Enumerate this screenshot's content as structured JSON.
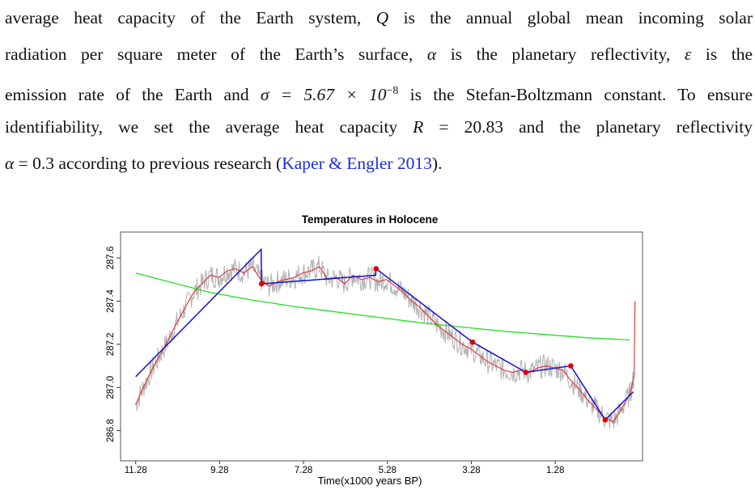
{
  "text": {
    "l1_a": "average heat capacity of the Earth system, ",
    "l1_Q": "Q",
    "l1_b": " is the annual global mean incoming solar",
    "l2_a": "radiation per square meter of the Earth’s surface, ",
    "l2_alpha": "α",
    "l2_b": " is the planetary reflectivity, ",
    "l2_eps": "ε",
    "l2_c": " is the",
    "l3_a": "emission rate of the Earth and ",
    "l3_sigma": "σ = 5.67 × 10",
    "l3_exp": "−8",
    "l3_b": " is the Stefan-Boltzmann constant. To ensure",
    "l4_a": "identifiability, we set the average heat capacity ",
    "l4_R": "R",
    "l4_b": " = 20.83 and the planetary reflectivity",
    "l5_alpha": "α",
    "l5_a": " = 0.3 according to previous research (",
    "l5_cite": "Kaper & Engler 2013",
    "l5_b": ")."
  },
  "chart_data": {
    "type": "line",
    "title": "Temperatures in Holocene",
    "xlabel": "Time(x1000 years BP)",
    "ylabel": "",
    "x_ticks": [
      "11.28",
      "9.28",
      "7.28",
      "5.28",
      "3.28",
      "1.28"
    ],
    "x_tick_values": [
      11.28,
      9.28,
      7.28,
      5.28,
      3.28,
      1.28
    ],
    "y_ticks": [
      "286.8",
      "287.0",
      "287.2",
      "287.4",
      "287.6"
    ],
    "y_tick_values": [
      286.8,
      287.0,
      287.2,
      287.4,
      287.6
    ],
    "xlim": [
      11.64,
      -0.8
    ],
    "ylim": [
      286.66,
      287.72
    ],
    "colors": {
      "raw": "#b0b0b0",
      "smooth": "#e03030",
      "piecewise": "#1010d0",
      "trend": "#20e020",
      "points": "#e00000"
    },
    "series": [
      {
        "key": "piecewise",
        "x": [
          11.28,
          8.29,
          8.28,
          5.56,
          5.55,
          3.25,
          1.98,
          0.91,
          0.09,
          -0.58
        ],
        "y": [
          287.05,
          287.64,
          287.48,
          287.52,
          287.55,
          287.21,
          287.07,
          287.1,
          286.85,
          286.98
        ]
      },
      {
        "key": "trend",
        "x": [
          11.28,
          10.5,
          9.5,
          8.5,
          7.5,
          6.5,
          5.5,
          4.5,
          3.5,
          2.5,
          1.5,
          0.5,
          -0.5
        ],
        "y": [
          287.53,
          287.49,
          287.44,
          287.405,
          287.375,
          287.35,
          287.325,
          287.3,
          287.28,
          287.26,
          287.245,
          287.23,
          287.22
        ]
      },
      {
        "key": "smooth",
        "x": [
          11.28,
          11.1,
          10.9,
          10.7,
          10.5,
          10.3,
          10.1,
          9.9,
          9.7,
          9.5,
          9.3,
          9.1,
          8.9,
          8.7,
          8.5,
          8.3,
          8.1,
          7.9,
          7.7,
          7.5,
          7.3,
          7.1,
          6.9,
          6.7,
          6.5,
          6.3,
          6.1,
          5.9,
          5.7,
          5.5,
          5.3,
          5.1,
          4.9,
          4.7,
          4.5,
          4.3,
          4.1,
          3.9,
          3.7,
          3.5,
          3.3,
          3.1,
          2.9,
          2.7,
          2.5,
          2.3,
          2.1,
          1.9,
          1.7,
          1.5,
          1.3,
          1.1,
          0.9,
          0.7,
          0.5,
          0.3,
          0.1,
          -0.1,
          -0.3,
          -0.5,
          -0.6,
          -0.62
        ],
        "y": [
          286.92,
          287.0,
          287.08,
          287.15,
          287.22,
          287.3,
          287.37,
          287.44,
          287.48,
          287.52,
          287.51,
          287.54,
          287.55,
          287.53,
          287.56,
          287.5,
          287.47,
          287.49,
          287.5,
          287.51,
          287.53,
          287.54,
          287.56,
          287.5,
          287.51,
          287.48,
          287.52,
          287.5,
          287.51,
          287.49,
          287.5,
          287.47,
          287.44,
          287.4,
          287.37,
          287.33,
          287.29,
          287.26,
          287.23,
          287.2,
          287.18,
          287.15,
          287.12,
          287.1,
          287.08,
          287.07,
          287.08,
          287.07,
          287.09,
          287.1,
          287.09,
          287.08,
          287.03,
          286.99,
          286.94,
          286.9,
          286.86,
          286.84,
          286.9,
          286.97,
          287.05,
          287.4
        ]
      },
      {
        "key": "points",
        "x": [
          8.28,
          5.55,
          3.25,
          1.98,
          0.91,
          0.09
        ],
        "y": [
          287.48,
          287.55,
          287.21,
          287.07,
          287.1,
          286.85
        ]
      }
    ],
    "raw_series_note": "grey noisy series follows smooth series",
    "legend": "none",
    "grid": false
  }
}
